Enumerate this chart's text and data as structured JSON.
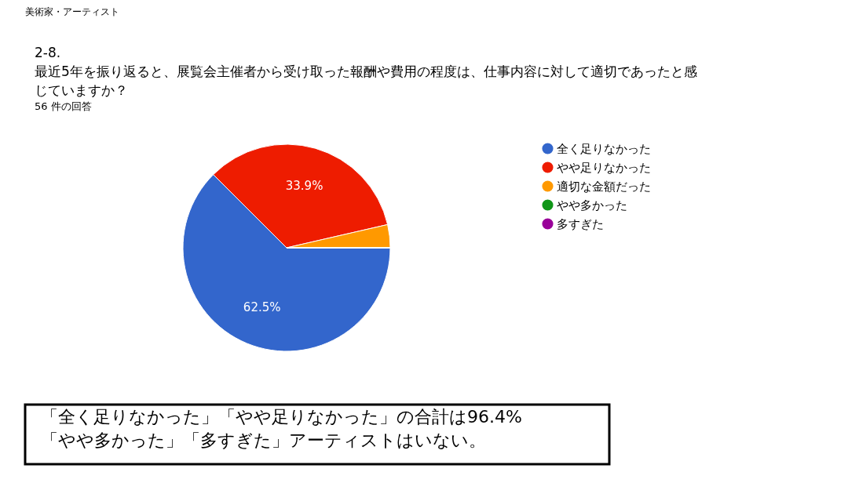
{
  "chart_data": {
    "type": "pie",
    "title": "2-8.\n最近5年を振り返ると、展覧会主催者から受け取った報酬や費用の程度は、仕事内容に対して適切であったと感じていますか？",
    "subtitle": "56 件の回答",
    "categories": [
      "全く足りなかった",
      "やや足りなかった",
      "適切な金額だった",
      "やや多かった",
      "多すぎた"
    ],
    "values": [
      62.5,
      33.9,
      3.6,
      0,
      0
    ],
    "colors": [
      "#3366cc",
      "#ee1c00",
      "#ff9900",
      "#109618",
      "#990099"
    ],
    "value_labels": [
      "62.5%",
      "33.9%",
      null,
      null,
      null
    ],
    "legend": "right",
    "annotations": [
      "美術家・アーティスト",
      "「全く足りなかった」「やや足りなかった」の合計は96.4%\n「やや多かった」「多すぎた」アーティストはいない。"
    ]
  }
}
